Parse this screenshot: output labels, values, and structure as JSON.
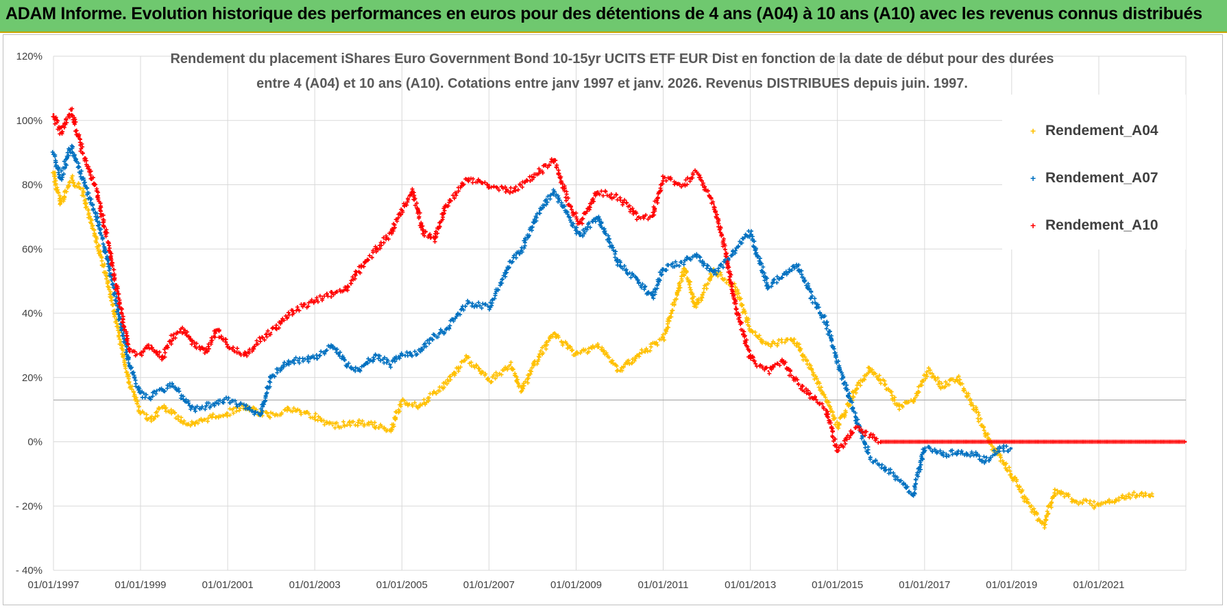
{
  "banner": {
    "title": "ADAM Informe. Evolution historique des performances en euros pour des détentions de 4 ans (A04) à 10 ans (A10) avec les revenus connus distribués"
  },
  "colors": {
    "banner_bg": "#6fc86f",
    "series_a04": "#ffc000",
    "series_a07": "#0070c0",
    "series_a10": "#ff0000"
  },
  "chart_data": {
    "type": "scatter",
    "title": "Rendement du placement iShares Euro Government Bond 10-15yr UCITS ETF EUR Dist en fonction de la date de début pour des durées entre 4 (A04) et 10 ans (A10).  Cotations entre janv 1997 et janv. 2026. Revenus DISTRIBUES depuis juin. 1997.",
    "title_lines": [
      "Rendement du placement iShares Euro Government Bond 10-15yr UCITS ETF EUR Dist en fonction de la date de début pour des durées",
      "entre 4 (A04) et 10 ans (A10).  Cotations entre janv 1997 et janv. 2026. Revenus DISTRIBUES depuis juin. 1997."
    ],
    "x_axis": {
      "type": "date",
      "range": [
        "1997-01-01",
        "2023-01-01"
      ],
      "tick_labels": [
        "01/01/1997",
        "01/01/1999",
        "01/01/2001",
        "01/01/2003",
        "01/01/2005",
        "01/01/2007",
        "01/01/2009",
        "01/01/2011",
        "01/01/2013",
        "01/01/2015",
        "01/01/2017",
        "01/01/2019",
        "01/01/2021"
      ]
    },
    "y_axis": {
      "range": [
        -40,
        120
      ],
      "ticks": [
        -40,
        -20,
        0,
        20,
        40,
        60,
        80,
        100,
        120
      ],
      "tick_labels": [
        "- 40%",
        "- 20%",
        "0%",
        "20%",
        "40%",
        "60%",
        "80%",
        "100%",
        "120%"
      ],
      "grid": true
    },
    "reference_line_y": 13,
    "legend": {
      "position": "top-right"
    },
    "series": [
      {
        "name": "Rendement_A04",
        "color": "#ffc000",
        "points": [
          [
            "1997-01-01",
            84
          ],
          [
            "1997-03-01",
            74
          ],
          [
            "1997-06-01",
            82
          ],
          [
            "1997-09-01",
            78
          ],
          [
            "1998-01-01",
            62
          ],
          [
            "1998-04-01",
            50
          ],
          [
            "1998-07-01",
            34
          ],
          [
            "1998-10-01",
            18
          ],
          [
            "1999-01-01",
            9
          ],
          [
            "1999-04-01",
            7
          ],
          [
            "1999-07-01",
            11
          ],
          [
            "1999-10-01",
            9
          ],
          [
            "2000-01-01",
            6
          ],
          [
            "2000-04-01",
            5
          ],
          [
            "2000-07-01",
            7
          ],
          [
            "2000-10-01",
            8
          ],
          [
            "2001-01-01",
            9
          ],
          [
            "2001-06-01",
            11
          ],
          [
            "2001-12-01",
            8
          ],
          [
            "2002-06-01",
            10
          ],
          [
            "2003-01-01",
            8
          ],
          [
            "2003-06-01",
            5
          ],
          [
            "2004-01-01",
            6
          ],
          [
            "2004-06-01",
            5
          ],
          [
            "2004-10-01",
            4
          ],
          [
            "2005-01-01",
            13
          ],
          [
            "2005-06-01",
            11
          ],
          [
            "2006-01-01",
            18
          ],
          [
            "2006-07-01",
            26
          ],
          [
            "2007-01-01",
            19
          ],
          [
            "2007-07-01",
            24
          ],
          [
            "2007-10-01",
            16
          ],
          [
            "2008-03-01",
            27
          ],
          [
            "2008-07-01",
            34
          ],
          [
            "2009-01-01",
            27
          ],
          [
            "2009-07-01",
            30
          ],
          [
            "2010-01-01",
            22
          ],
          [
            "2010-06-01",
            27
          ],
          [
            "2011-01-01",
            32
          ],
          [
            "2011-07-01",
            54
          ],
          [
            "2011-10-01",
            42
          ],
          [
            "2012-03-01",
            53
          ],
          [
            "2012-09-01",
            48
          ],
          [
            "2013-01-01",
            35
          ],
          [
            "2013-06-01",
            30
          ],
          [
            "2014-01-01",
            32
          ],
          [
            "2014-06-01",
            22
          ],
          [
            "2014-10-01",
            13
          ],
          [
            "2015-01-01",
            5
          ],
          [
            "2015-06-01",
            16
          ],
          [
            "2015-10-01",
            23
          ],
          [
            "2016-02-01",
            18
          ],
          [
            "2016-06-01",
            11
          ],
          [
            "2016-10-01",
            13
          ],
          [
            "2017-02-01",
            22
          ],
          [
            "2017-06-01",
            17
          ],
          [
            "2017-10-01",
            20
          ],
          [
            "2018-03-01",
            10
          ],
          [
            "2018-07-01",
            0
          ],
          [
            "2018-10-01",
            -5
          ],
          [
            "2019-01-01",
            -10
          ],
          [
            "2019-06-01",
            -20
          ],
          [
            "2019-10-01",
            -26
          ],
          [
            "2020-01-01",
            -15
          ],
          [
            "2020-06-01",
            -18
          ],
          [
            "2021-01-01",
            -20
          ],
          [
            "2021-06-01",
            -18
          ],
          [
            "2022-01-01",
            -16
          ],
          [
            "2022-04-01",
            -17
          ]
        ]
      },
      {
        "name": "Rendement_A07",
        "color": "#0070c0",
        "points": [
          [
            "1997-01-01",
            90
          ],
          [
            "1997-03-01",
            82
          ],
          [
            "1997-06-01",
            92
          ],
          [
            "1997-09-01",
            82
          ],
          [
            "1998-01-01",
            70
          ],
          [
            "1998-04-01",
            56
          ],
          [
            "1998-07-01",
            40
          ],
          [
            "1998-10-01",
            24
          ],
          [
            "1999-01-01",
            15
          ],
          [
            "1999-04-01",
            14
          ],
          [
            "1999-07-01",
            16
          ],
          [
            "1999-10-01",
            18
          ],
          [
            "2000-01-01",
            13
          ],
          [
            "2000-04-01",
            10
          ],
          [
            "2000-07-01",
            11
          ],
          [
            "2000-10-01",
            12
          ],
          [
            "2001-01-01",
            13
          ],
          [
            "2001-06-01",
            11
          ],
          [
            "2001-10-01",
            8
          ],
          [
            "2002-01-01",
            20
          ],
          [
            "2002-06-01",
            25
          ],
          [
            "2003-01-01",
            26
          ],
          [
            "2003-06-01",
            30
          ],
          [
            "2003-10-01",
            24
          ],
          [
            "2004-01-01",
            22
          ],
          [
            "2004-06-01",
            27
          ],
          [
            "2004-10-01",
            24
          ],
          [
            "2005-01-01",
            27
          ],
          [
            "2005-06-01",
            28
          ],
          [
            "2005-10-01",
            33
          ],
          [
            "2006-01-01",
            35
          ],
          [
            "2006-07-01",
            43
          ],
          [
            "2007-01-01",
            42
          ],
          [
            "2007-07-01",
            56
          ],
          [
            "2007-10-01",
            60
          ],
          [
            "2008-03-01",
            72
          ],
          [
            "2008-07-01",
            78
          ],
          [
            "2008-11-01",
            70
          ],
          [
            "2009-02-01",
            64
          ],
          [
            "2009-07-01",
            70
          ],
          [
            "2010-01-01",
            55
          ],
          [
            "2010-06-01",
            50
          ],
          [
            "2010-10-01",
            45
          ],
          [
            "2011-01-01",
            54
          ],
          [
            "2011-07-01",
            56
          ],
          [
            "2011-10-01",
            58
          ],
          [
            "2012-03-01",
            52
          ],
          [
            "2012-09-01",
            60
          ],
          [
            "2013-01-01",
            65
          ],
          [
            "2013-06-01",
            48
          ],
          [
            "2013-10-01",
            52
          ],
          [
            "2014-02-01",
            55
          ],
          [
            "2014-06-01",
            45
          ],
          [
            "2014-10-01",
            37
          ],
          [
            "2015-01-01",
            25
          ],
          [
            "2015-06-01",
            8
          ],
          [
            "2015-10-01",
            -5
          ],
          [
            "2016-02-01",
            -8
          ],
          [
            "2016-06-01",
            -12
          ],
          [
            "2016-10-01",
            -16
          ],
          [
            "2017-01-01",
            -2
          ],
          [
            "2017-06-01",
            -4
          ],
          [
            "2017-10-01",
            -3
          ],
          [
            "2018-03-01",
            -4
          ],
          [
            "2018-06-01",
            -6
          ],
          [
            "2018-10-01",
            -2
          ],
          [
            "2019-01-01",
            -2
          ]
        ]
      },
      {
        "name": "Rendement_A10",
        "color": "#ff0000",
        "points": [
          [
            "1997-01-01",
            102
          ],
          [
            "1997-03-01",
            96
          ],
          [
            "1997-06-01",
            103
          ],
          [
            "1997-09-01",
            90
          ],
          [
            "1998-01-01",
            78
          ],
          [
            "1998-04-01",
            62
          ],
          [
            "1998-07-01",
            45
          ],
          [
            "1998-10-01",
            28
          ],
          [
            "1999-01-01",
            27
          ],
          [
            "1999-04-01",
            30
          ],
          [
            "1999-07-01",
            26
          ],
          [
            "1999-10-01",
            33
          ],
          [
            "2000-01-01",
            35
          ],
          [
            "2000-04-01",
            30
          ],
          [
            "2000-07-01",
            28
          ],
          [
            "2000-10-01",
            35
          ],
          [
            "2001-01-01",
            30
          ],
          [
            "2001-06-01",
            27
          ],
          [
            "2001-10-01",
            32
          ],
          [
            "2002-01-01",
            34
          ],
          [
            "2002-06-01",
            40
          ],
          [
            "2003-01-01",
            44
          ],
          [
            "2003-06-01",
            46
          ],
          [
            "2003-10-01",
            48
          ],
          [
            "2004-01-01",
            53
          ],
          [
            "2004-06-01",
            60
          ],
          [
            "2004-10-01",
            65
          ],
          [
            "2005-01-01",
            72
          ],
          [
            "2005-04-01",
            78
          ],
          [
            "2005-07-01",
            65
          ],
          [
            "2005-10-01",
            63
          ],
          [
            "2006-01-01",
            73
          ],
          [
            "2006-07-01",
            82
          ],
          [
            "2007-01-01",
            80
          ],
          [
            "2007-07-01",
            78
          ],
          [
            "2007-10-01",
            80
          ],
          [
            "2008-03-01",
            84
          ],
          [
            "2008-07-01",
            88
          ],
          [
            "2008-11-01",
            74
          ],
          [
            "2009-02-01",
            68
          ],
          [
            "2009-07-01",
            78
          ],
          [
            "2010-01-01",
            76
          ],
          [
            "2010-06-01",
            70
          ],
          [
            "2010-10-01",
            70
          ],
          [
            "2011-01-01",
            82
          ],
          [
            "2011-07-01",
            80
          ],
          [
            "2011-10-01",
            84
          ],
          [
            "2012-03-01",
            74
          ],
          [
            "2012-06-01",
            60
          ],
          [
            "2012-09-01",
            42
          ],
          [
            "2013-01-01",
            26
          ],
          [
            "2013-06-01",
            22
          ],
          [
            "2013-10-01",
            25
          ],
          [
            "2014-02-01",
            18
          ],
          [
            "2014-06-01",
            14
          ],
          [
            "2014-10-01",
            10
          ],
          [
            "2015-01-01",
            -3
          ],
          [
            "2015-06-01",
            4
          ],
          [
            "2015-10-01",
            2
          ],
          [
            "2016-01-01",
            0
          ],
          [
            "2017-01-01",
            0
          ],
          [
            "2018-01-01",
            0
          ],
          [
            "2019-01-01",
            0
          ],
          [
            "2020-01-01",
            0
          ],
          [
            "2021-01-01",
            0
          ],
          [
            "2022-01-01",
            0
          ],
          [
            "2023-01-01",
            0
          ]
        ]
      }
    ]
  }
}
